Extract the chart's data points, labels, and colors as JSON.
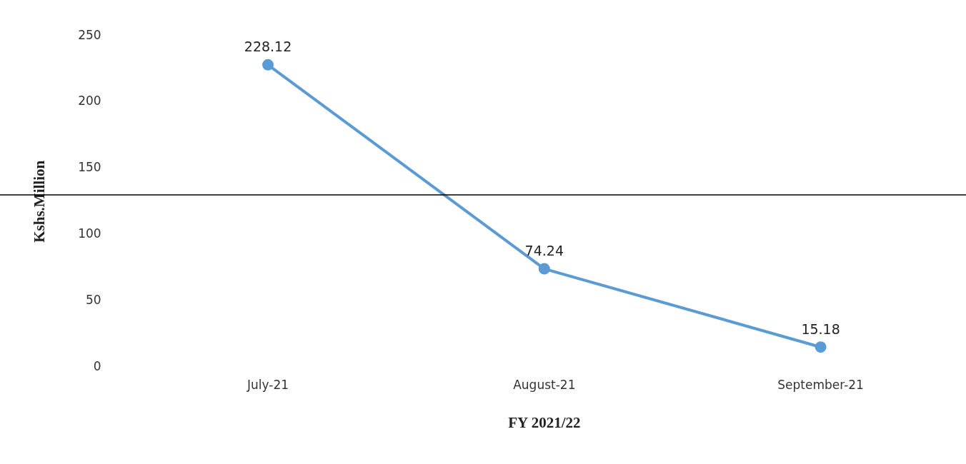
{
  "chart_data": {
    "type": "line",
    "xlabel": "FY 2021/22",
    "ylabel": "Kshs.Million",
    "categories": [
      "July-21",
      "August-21",
      "September-21"
    ],
    "series": [
      {
        "color": "#5b9bd5",
        "values": [
          228.12,
          74.24,
          15.18
        ]
      }
    ],
    "ylim": [
      0,
      250
    ],
    "yticks": [
      0,
      50,
      100,
      150,
      200,
      250
    ],
    "grid": false,
    "legend": false,
    "marker": "circle",
    "line_style": "solid",
    "data_labels": true,
    "ref_lines": [
      {
        "axis": "y",
        "value": 130,
        "color": "#000000"
      }
    ]
  }
}
